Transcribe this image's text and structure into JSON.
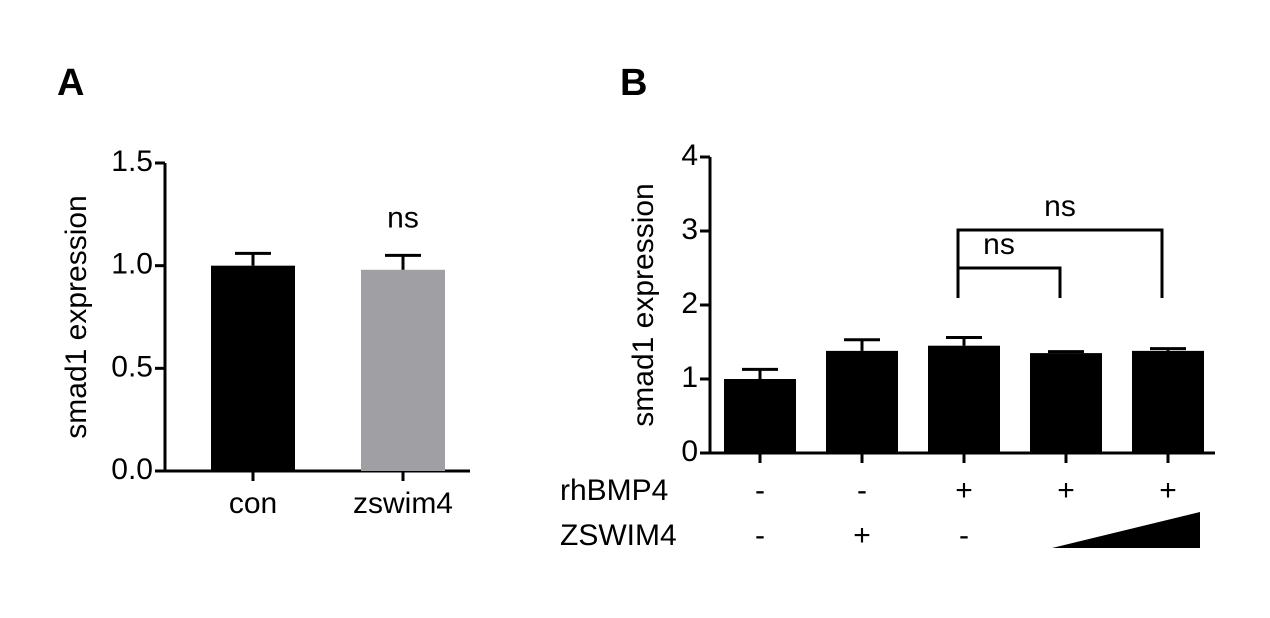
{
  "chart_data": [
    {
      "type": "bar",
      "panel": "A",
      "y_label": "smad1 expression",
      "categories": [
        "con",
        "zswim4"
      ],
      "values": [
        1.0,
        0.98
      ],
      "errors": [
        0.06,
        0.07
      ],
      "colors": [
        "#000000",
        "#a0a0a4"
      ],
      "ylim": [
        0,
        1.5
      ],
      "yticks": [
        {
          "value": 0,
          "label": "0.0"
        },
        {
          "value": 0.5,
          "label": "0.5"
        },
        {
          "value": 1,
          "label": "1.0"
        },
        {
          "value": 1.5,
          "label": "1.5"
        }
      ],
      "annotations": [
        {
          "text": "ns",
          "at": 1
        }
      ]
    },
    {
      "type": "bar",
      "panel": "B",
      "y_label": "smad1 expression",
      "categories": [
        null,
        null,
        null,
        null,
        null
      ],
      "values": [
        1.0,
        1.38,
        1.45,
        1.35,
        1.38
      ],
      "errors": [
        0.13,
        0.15,
        0.11,
        0.02,
        0.03
      ],
      "colors": [
        "#000000",
        "#000000",
        "#000000",
        "#000000",
        "#000000"
      ],
      "ylim": [
        0,
        4
      ],
      "yticks": [
        0,
        1,
        2,
        3,
        4
      ],
      "treatments": [
        {
          "label": "rhBMP4",
          "signs": [
            "-",
            "-",
            "+",
            "+",
            "+"
          ]
        },
        {
          "label": "ZSWIM4",
          "signs": [
            "-",
            "+",
            "-",
            null,
            null
          ]
        }
      ],
      "comparisons": [
        {
          "text": "ns",
          "from": 2,
          "to": 3
        },
        {
          "text": "ns",
          "from": 2,
          "to": 4
        }
      ]
    }
  ]
}
